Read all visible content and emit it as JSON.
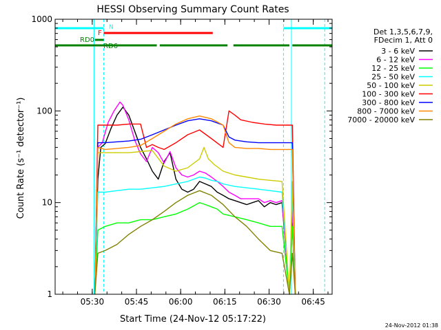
{
  "chart_data": {
    "type": "line",
    "title": "HESSI Observing Summary Count Rates",
    "xlabel": "Start Time (24-Nov-12 05:17:22)",
    "ylabel": "Count Rate (s⁻¹ detector⁻¹)",
    "yscale": "log",
    "ylim": [
      1,
      1000
    ],
    "xlim_minutes": [
      0,
      94
    ],
    "xtick_labels": [
      "05:30",
      "05:45",
      "06:00",
      "06:15",
      "06:30",
      "06:45"
    ],
    "xtick_minutes": [
      12.6,
      27.6,
      42.6,
      57.6,
      72.6,
      87.6
    ],
    "ytick_labels": [
      "1",
      "10",
      "100",
      "1000"
    ],
    "ytick_values": [
      1,
      10,
      100,
      1000
    ],
    "legend_header": [
      "Det 1,3,5,6,7,9,",
      "FDecim 1, Att 0"
    ],
    "legend_position": "right",
    "timestamp": "24-Nov-2012 01:38",
    "flag_labels": {
      "N": "N",
      "F": "F",
      "RD0": "RD0",
      "RD6": "RD6"
    },
    "series": [
      {
        "name": "3 - 6 keV",
        "color": "#000000",
        "x": [
          13.5,
          14.5,
          15.5,
          17,
          19,
          21,
          23,
          25,
          27,
          29,
          31,
          33,
          35,
          37,
          39,
          41,
          43,
          45,
          47,
          49,
          51,
          53,
          55,
          57,
          59,
          61,
          63,
          65,
          67,
          69,
          71,
          73,
          75,
          77,
          79.5,
          80.5,
          81.5
        ],
        "y": [
          1,
          18,
          40,
          44,
          65,
          90,
          110,
          90,
          60,
          40,
          30,
          22,
          18,
          28,
          35,
          18,
          14,
          13,
          14,
          17,
          16,
          15,
          13,
          12,
          11,
          10.5,
          10,
          9.5,
          10,
          10.5,
          9,
          10,
          9.5,
          10,
          1,
          6,
          1
        ]
      },
      {
        "name": "6 - 12 keV",
        "color": "#ff00ff",
        "x": [
          13.5,
          14.5,
          16,
          18,
          20,
          22,
          23,
          25,
          27,
          29,
          31,
          33,
          35,
          37,
          39,
          41,
          43,
          45,
          47,
          49,
          51,
          53,
          55,
          57,
          59,
          61,
          63,
          65,
          67,
          69,
          71,
          73,
          75,
          77,
          79.5,
          80.5,
          81.5
        ],
        "y": [
          1,
          40,
          45,
          75,
          100,
          125,
          115,
          80,
          48,
          34,
          28,
          40,
          35,
          27,
          36,
          24,
          20,
          19,
          20,
          22,
          21,
          19,
          17,
          15,
          13,
          12,
          11,
          11,
          11,
          11,
          10,
          10.5,
          10,
          10.5,
          1,
          9,
          1
        ]
      },
      {
        "name": "12 - 25 keV",
        "color": "#00ff00",
        "x": [
          13.5,
          14.5,
          17,
          21,
          25,
          29,
          33,
          37,
          41,
          45,
          49,
          51,
          53,
          55,
          57,
          61,
          65,
          69,
          73,
          77,
          79.5,
          80.5,
          81.5
        ],
        "y": [
          1,
          5,
          5.5,
          6,
          6,
          6.5,
          6.5,
          7,
          7.5,
          8.5,
          10,
          9.5,
          9,
          8.5,
          7.5,
          7,
          6.5,
          6,
          5.5,
          5.5,
          1,
          5.5,
          1
        ]
      },
      {
        "name": "25 - 50 keV",
        "color": "#00ffff",
        "x": [
          13.5,
          14.5,
          17,
          21,
          25,
          29,
          33,
          37,
          41,
          45,
          49,
          51,
          53,
          55,
          57,
          61,
          65,
          69,
          73,
          77,
          79.5,
          80.5,
          81.5
        ],
        "y": [
          1,
          13,
          13,
          13.5,
          14,
          14,
          14.5,
          15,
          16,
          17,
          19,
          18.5,
          17.5,
          17,
          16,
          15,
          14.5,
          14,
          13.5,
          13,
          1,
          13,
          1
        ]
      },
      {
        "name": "50 - 100 keV",
        "color": "#cccc00",
        "x": [
          13.5,
          14.5,
          17,
          21,
          25,
          29,
          33,
          37,
          41,
          45,
          49,
          50.5,
          52,
          54,
          57,
          61,
          65,
          69,
          73,
          77,
          79.5,
          80.5,
          81.5
        ],
        "y": [
          1,
          35,
          35,
          35,
          35,
          36,
          37,
          25,
          22,
          24,
          30,
          40,
          30,
          26,
          22,
          20,
          19,
          18,
          17.5,
          17,
          1,
          17,
          1
        ]
      },
      {
        "name": "100 - 300 keV",
        "color": "#ff0000",
        "x": [
          13.5,
          14.5,
          17,
          21,
          25,
          29,
          31,
          33,
          35,
          37,
          41,
          45,
          49,
          53,
          57,
          59,
          61,
          63,
          67,
          71,
          75,
          79,
          80.5,
          81.5
        ],
        "y": [
          1,
          70,
          70,
          70,
          72,
          72,
          40,
          43,
          40,
          38,
          45,
          55,
          62,
          50,
          40,
          100,
          90,
          80,
          75,
          72,
          70,
          70,
          70,
          1
        ]
      },
      {
        "name": "300 - 800 keV",
        "color": "#0000ff",
        "x": [
          13.5,
          14.5,
          17,
          21,
          25,
          29,
          33,
          37,
          41,
          45,
          49,
          53,
          57,
          59,
          61,
          65,
          69,
          73,
          77,
          80.5,
          81.5
        ],
        "y": [
          1,
          45,
          45,
          46,
          47,
          49,
          55,
          62,
          70,
          78,
          82,
          78,
          70,
          52,
          48,
          46,
          45,
          45,
          45,
          45,
          1
        ]
      },
      {
        "name": "800 - 7000 keV",
        "color": "#ff8800",
        "x": [
          13.5,
          14.5,
          17,
          21,
          25,
          29,
          33,
          37,
          41,
          45,
          49,
          53,
          57,
          59,
          61,
          65,
          69,
          73,
          77,
          80.5,
          81.5
        ],
        "y": [
          1,
          40,
          38,
          39,
          40,
          42,
          50,
          60,
          72,
          82,
          88,
          82,
          70,
          45,
          40,
          39,
          39,
          38,
          38,
          38,
          1
        ]
      },
      {
        "name": "7000 - 20000 keV",
        "color": "#808000",
        "x": [
          13.5,
          14.5,
          17,
          21,
          25,
          29,
          33,
          37,
          41,
          45,
          49,
          53,
          57,
          61,
          65,
          69,
          73,
          77,
          79.5,
          80.5,
          81.5
        ],
        "y": [
          1,
          2.8,
          3,
          3.5,
          4.5,
          5.5,
          6.5,
          8,
          10,
          12,
          13.5,
          12,
          9.5,
          7,
          5.5,
          4,
          3,
          2.8,
          1,
          2.8,
          1
        ]
      }
    ],
    "flags": {
      "N": {
        "color": "#00ffff",
        "segments": [
          [
            0,
            16.5
          ],
          [
            77.5,
            94
          ]
        ]
      },
      "F": {
        "color": "#ff0000",
        "segments": [
          [
            16.5,
            53.5
          ]
        ]
      },
      "RD0": {
        "color": "#008000",
        "segments": [
          [
            0,
            34.5
          ],
          [
            35.5,
            58.5
          ],
          [
            60.5,
            79.5
          ],
          [
            80.5,
            94
          ]
        ]
      },
      "RD6": {
        "color": "#008000",
        "segments": [
          [
            13.5,
            16.5
          ]
        ]
      }
    },
    "saa_markers_minutes": [
      16.5,
      77.5,
      91.5
    ]
  }
}
